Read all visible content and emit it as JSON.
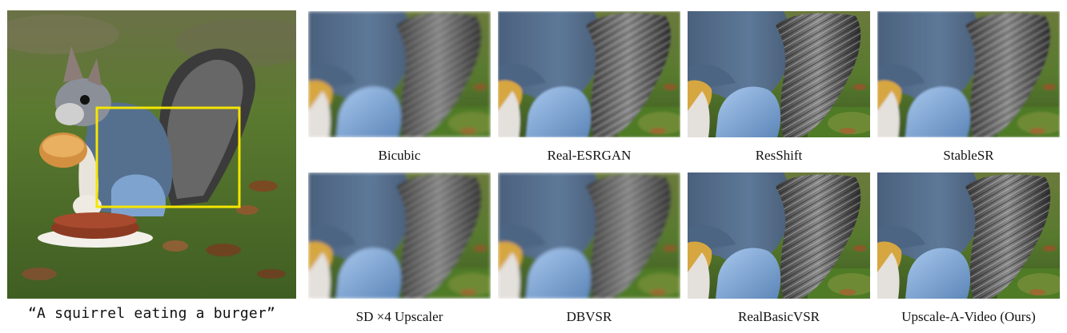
{
  "main": {
    "caption": "“A squirrel eating a burger”"
  },
  "methods": [
    {
      "label": "Bicubic",
      "quality": "blurry"
    },
    {
      "label": "Real-ESRGAN",
      "quality": "oversmooth"
    },
    {
      "label": "ResShift",
      "quality": "noisy"
    },
    {
      "label": "StableSR",
      "quality": "smooth"
    },
    {
      "label": "SD ×4 Upscaler",
      "quality": "blurry"
    },
    {
      "label": "DBVSR",
      "quality": "blurry"
    },
    {
      "label": "RealBasicVSR",
      "quality": "sharp"
    },
    {
      "label": "Upscale-A-Video (Ours)",
      "quality": "sharp"
    }
  ],
  "colors": {
    "highlight_box": "#f5e600",
    "grass": "#4d6a2a",
    "fur_body": "#5a7493",
    "fur_belly": "#7ea8d8",
    "tail": "#2a2a2a"
  }
}
